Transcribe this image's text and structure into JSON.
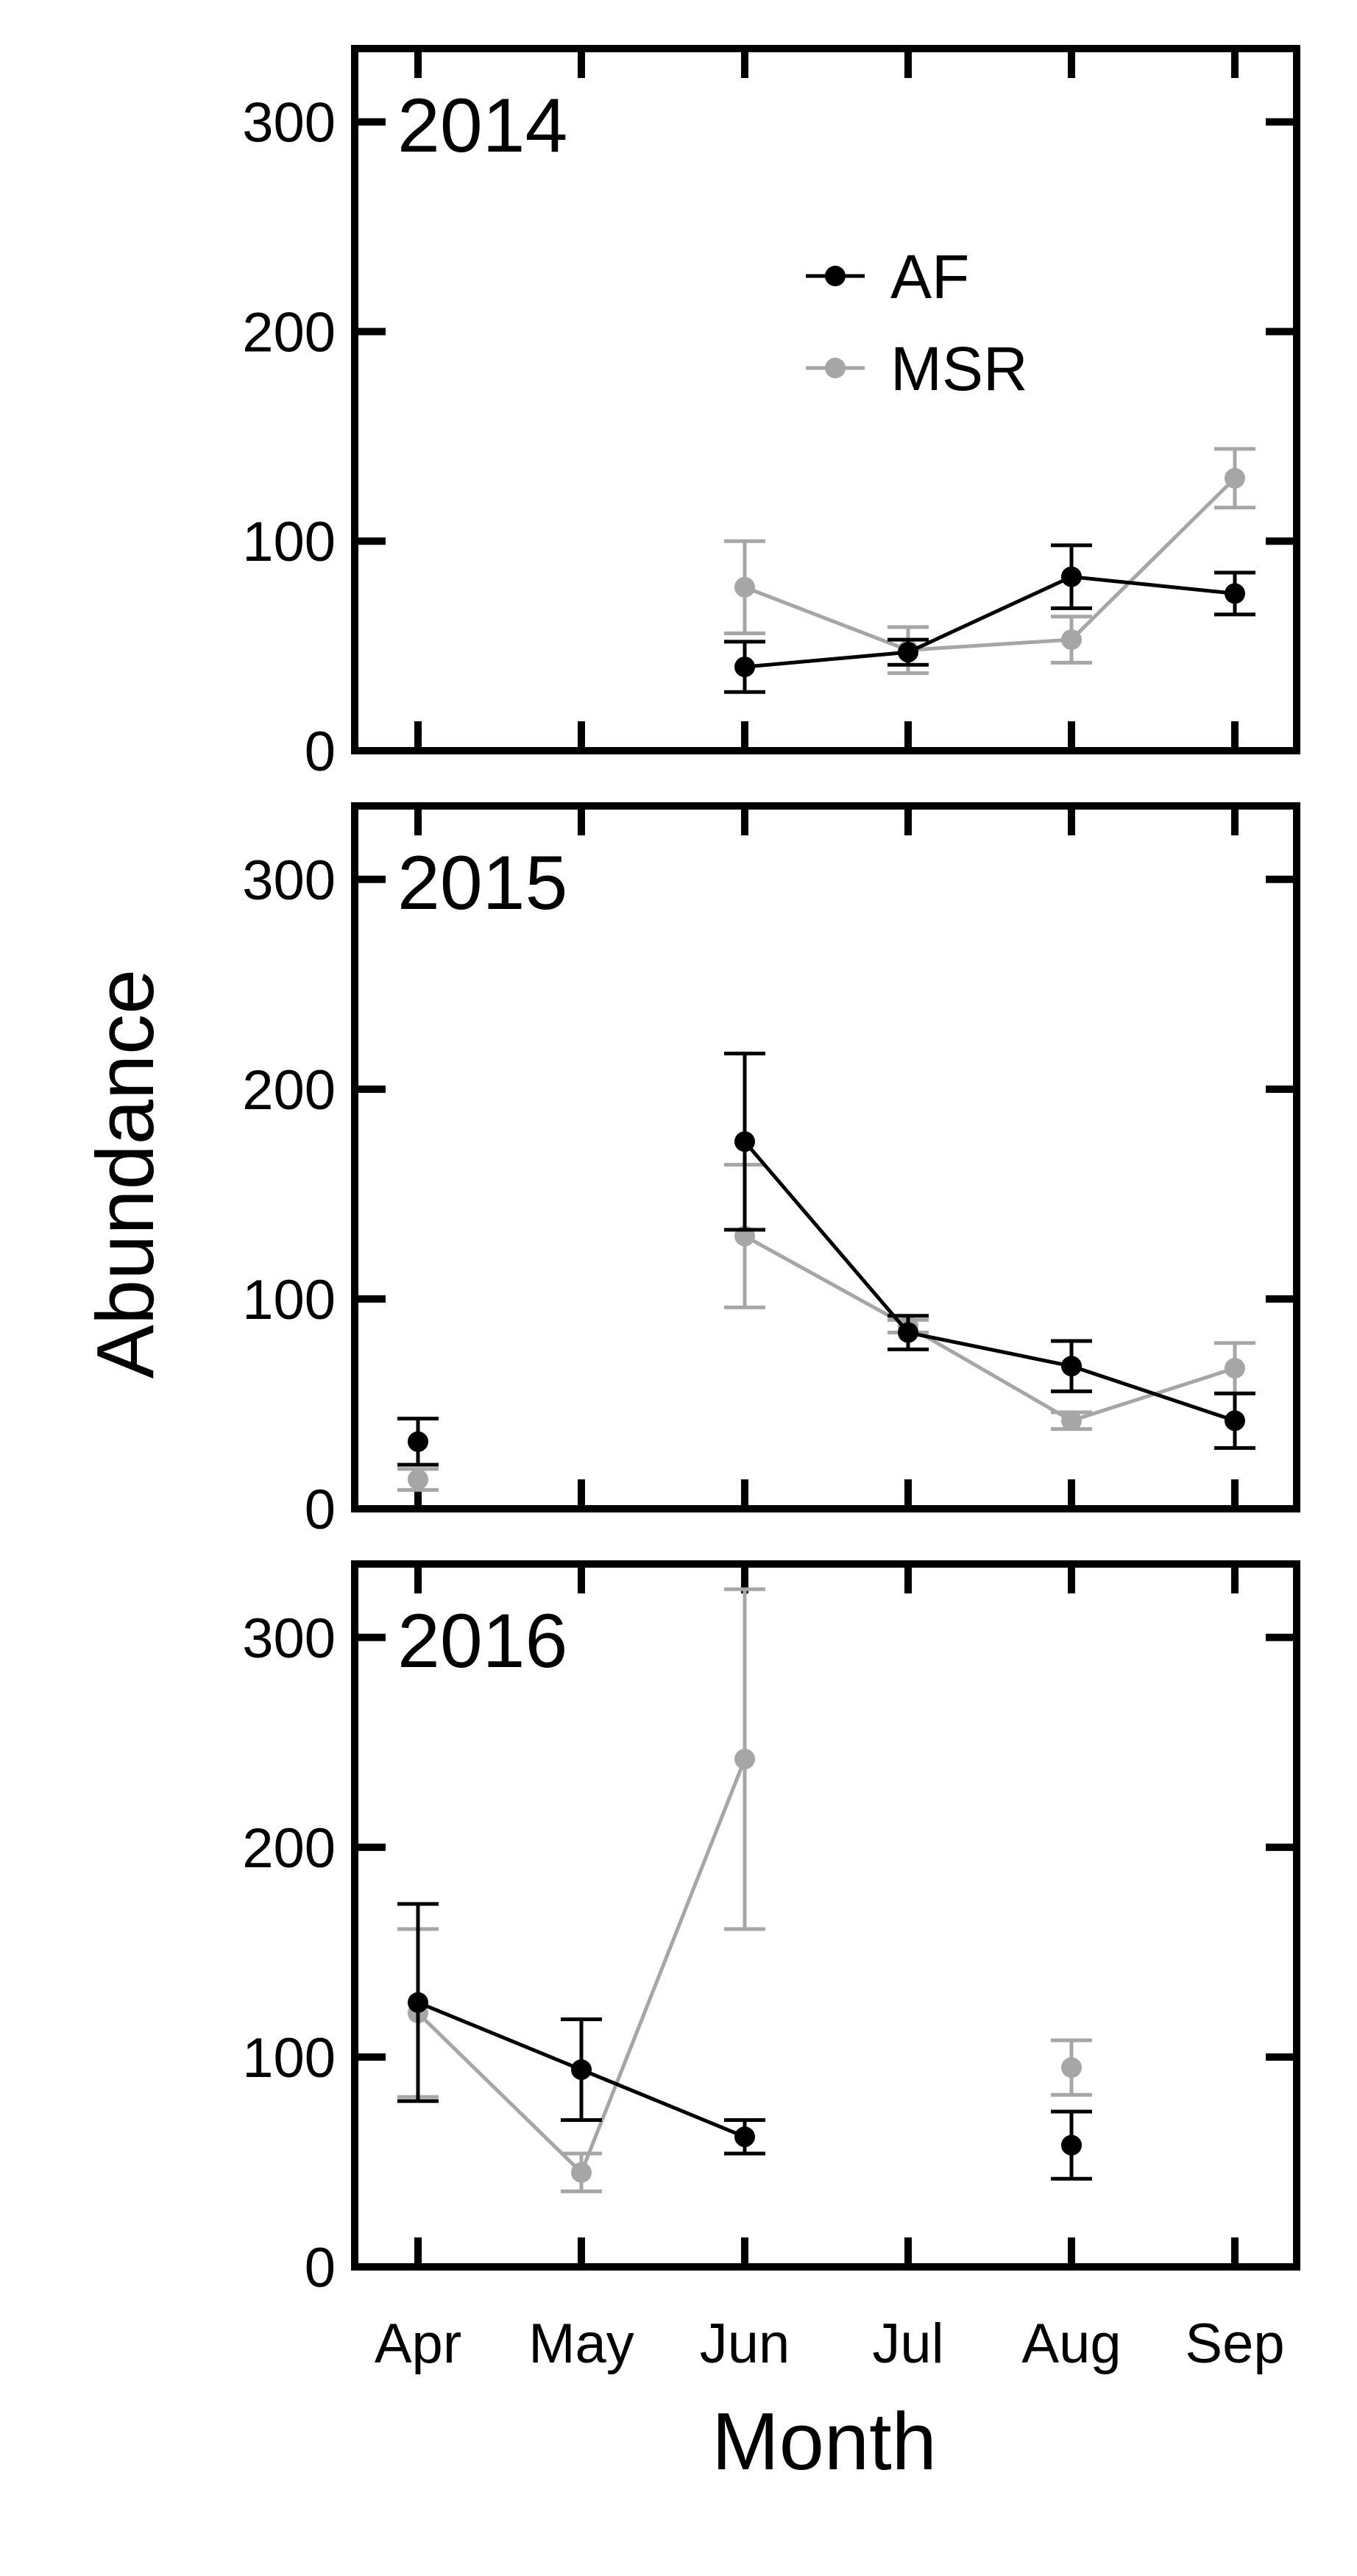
{
  "chart_data": {
    "type": "line",
    "categories": [
      "Apr",
      "May",
      "Jun",
      "Jul",
      "Aug",
      "Sep"
    ],
    "xlabel": "Month",
    "ylabel": "Abundance",
    "ylim": [
      0,
      335
    ],
    "yticks": [
      0,
      100,
      200,
      300
    ],
    "grid": false,
    "legend_position": "top-right of top panel",
    "colors": {
      "AF": "#000000",
      "MSR": "#a6a6a6"
    },
    "legend": [
      "AF",
      "MSR"
    ],
    "panels": [
      {
        "label": "2014",
        "series": [
          {
            "name": "AF",
            "values": [
              null,
              null,
              40,
              47,
              83,
              75
            ],
            "err_low": [
              null,
              null,
              28,
              41,
              68,
              65
            ],
            "err_high": [
              null,
              null,
              52,
              53,
              98,
              85
            ]
          },
          {
            "name": "MSR",
            "values": [
              null,
              null,
              78,
              48,
              53,
              130
            ],
            "err_low": [
              null,
              null,
              56,
              37,
              42,
              116
            ],
            "err_high": [
              null,
              null,
              100,
              59,
              64,
              144
            ]
          }
        ]
      },
      {
        "label": "2015",
        "series": [
          {
            "name": "AF",
            "values": [
              32,
              null,
              175,
              84,
              68,
              42
            ],
            "err_low": [
              21,
              null,
              133,
              76,
              56,
              29
            ],
            "err_high": [
              43,
              null,
              217,
              92,
              80,
              55
            ]
          },
          {
            "name": "MSR",
            "values": [
              14,
              null,
              130,
              87,
              42,
              67
            ],
            "err_low": [
              9,
              null,
              96,
              84,
              38,
              55
            ],
            "err_high": [
              19,
              null,
              164,
              90,
              46,
              79
            ]
          }
        ]
      },
      {
        "label": "2016",
        "series": [
          {
            "name": "AF",
            "values": [
              126,
              94,
              62,
              null,
              58,
              null
            ],
            "err_low": [
              79,
              70,
              54,
              null,
              42,
              null
            ],
            "err_high": [
              173,
              118,
              70,
              null,
              74,
              null
            ],
            "segments": [
              [
                0,
                1,
                2
              ]
            ]
          },
          {
            "name": "MSR",
            "values": [
              121,
              45,
              242,
              null,
              95,
              null
            ],
            "err_low": [
              81,
              36,
              161,
              null,
              82,
              null
            ],
            "err_high": [
              161,
              54,
              323,
              null,
              108,
              null
            ],
            "segments": [
              [
                0,
                1,
                2
              ]
            ]
          }
        ]
      }
    ]
  }
}
